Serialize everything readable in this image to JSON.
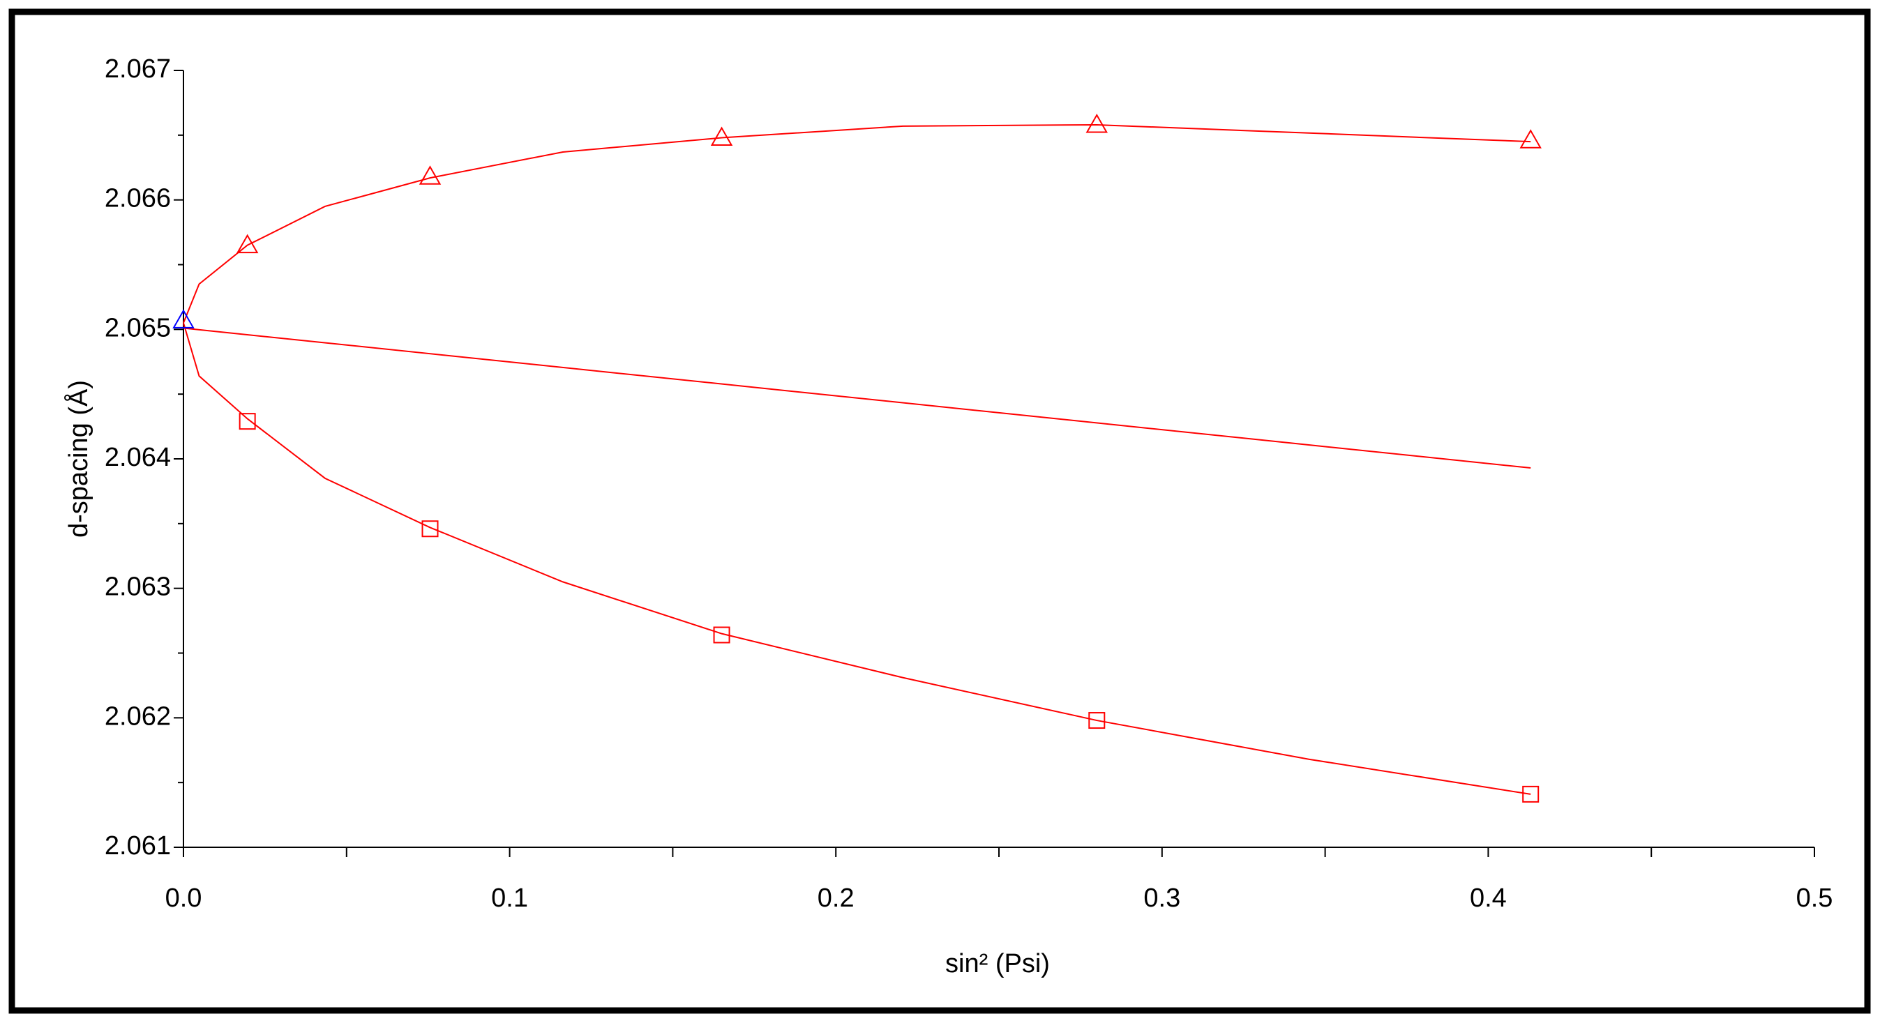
{
  "chart_data": {
    "type": "scatter",
    "xlabel": "sin² (Psi)",
    "ylabel": "d-spacing (Å)",
    "xlim": [
      0,
      0.5
    ],
    "xticks": [
      {
        "value": 0,
        "label": "0.0"
      },
      0.1,
      0.2,
      0.3,
      0.4,
      0.5
    ],
    "xminorticks": [
      0.05,
      0.15,
      0.25,
      0.35,
      0.45
    ],
    "ylim": [
      2.061,
      2.067
    ],
    "yticks": [
      2.061,
      2.062,
      2.063,
      2.064,
      2.065,
      2.066,
      2.067
    ],
    "yminorticks": [
      2.0615,
      2.0625,
      2.0635,
      2.0645,
      2.0655,
      2.0665
    ],
    "series": [
      {
        "color": "#ff0000",
        "marker": "triangle",
        "x": [
          0.0196,
          0.0756,
          0.165,
          0.28,
          0.413
        ],
        "values": [
          2.06565,
          2.06618,
          2.06648,
          2.06658,
          2.06646
        ]
      },
      {
        "color": "#ff0000",
        "marker": "square",
        "x": [
          0.0196,
          0.0756,
          0.165,
          0.28,
          0.413
        ],
        "values": [
          2.06429,
          2.06346,
          2.06264,
          2.06198,
          2.06141
        ]
      },
      {
        "color": "#0000ff",
        "marker": "triangle",
        "x": [
          0
        ],
        "values": [
          2.06507
        ]
      }
    ],
    "fits": [
      {
        "color": "#ff0000",
        "x": [
          0,
          0.0048,
          0.0196,
          0.0434,
          0.0756,
          0.1163,
          0.165,
          0.2206,
          0.28,
          0.413
        ],
        "values": [
          2.06505,
          2.06535,
          2.06565,
          2.06595,
          2.06617,
          2.06637,
          2.06648,
          2.06657,
          2.06658,
          2.06645
        ]
      },
      {
        "color": "#ff0000",
        "x": [
          0,
          0.0048,
          0.0196,
          0.0434,
          0.0756,
          0.1163,
          0.165,
          0.2206,
          0.28,
          0.345,
          0.413
        ],
        "values": [
          2.06505,
          2.06464,
          2.06431,
          2.06385,
          2.06347,
          2.06305,
          2.06265,
          2.06231,
          2.06198,
          2.06168,
          2.06141
        ]
      },
      {
        "color": "#ff0000",
        "x": [
          0,
          0.413
        ],
        "values": [
          2.06501,
          2.06393
        ]
      }
    ]
  }
}
